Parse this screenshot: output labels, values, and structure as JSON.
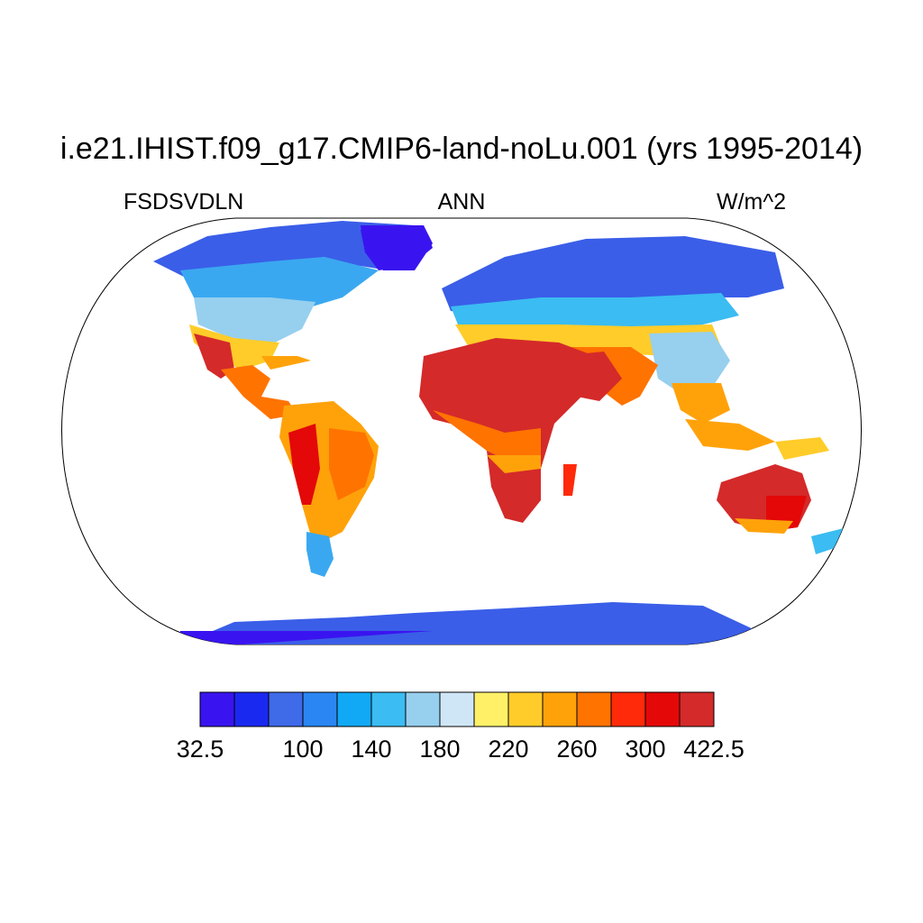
{
  "title": "i.e21.IHIST.f09_g17.CMIP6-land-noLu.001 (yrs 1995-2014)",
  "left_label": "FSDSVDLN",
  "center_label": "ANN",
  "right_label": "W/m^2",
  "colorbar": {
    "colors": [
      "#3a14f0",
      "#1a29f0",
      "#3f6ae8",
      "#2a86f3",
      "#11a9f5",
      "#3bbcf2",
      "#97cfee",
      "#cfe6f7",
      "#fff068",
      "#ffcc2a",
      "#ffa20a",
      "#ff7300",
      "#ff2a0a",
      "#e40808",
      "#d42a2a"
    ],
    "tick_labels": [
      "32.5",
      "100",
      "140",
      "180",
      "220",
      "260",
      "300",
      "422.5"
    ],
    "tick_box_index": [
      0,
      3,
      5,
      7,
      9,
      11,
      13,
      15
    ]
  },
  "chart_data": {
    "type": "heatmap",
    "variable": "FSDSVDLN",
    "season": "ANN",
    "units": "W/m^2",
    "value_range": [
      32.5,
      422.5
    ],
    "contour_levels": [
      32.5,
      60,
      80,
      100,
      120,
      140,
      160,
      180,
      200,
      220,
      240,
      260,
      280,
      300,
      320,
      422.5
    ],
    "regions": [
      {
        "region": "Sahara / Arabian Peninsula",
        "approx_value": 330
      },
      {
        "region": "Southern Africa",
        "approx_value": 320
      },
      {
        "region": "Central Australia",
        "approx_value": 310
      },
      {
        "region": "Southwest North America",
        "approx_value": 300
      },
      {
        "region": "Amazon / Brazil",
        "approx_value": 260
      },
      {
        "region": "India",
        "approx_value": 280
      },
      {
        "region": "Southeast Asia / Indonesia",
        "approx_value": 240
      },
      {
        "region": "Europe",
        "approx_value": 160
      },
      {
        "region": "Canada / Siberia",
        "approx_value": 120
      },
      {
        "region": "Greenland",
        "approx_value": 90
      },
      {
        "region": "Antarctica",
        "approx_value": 70
      }
    ]
  }
}
